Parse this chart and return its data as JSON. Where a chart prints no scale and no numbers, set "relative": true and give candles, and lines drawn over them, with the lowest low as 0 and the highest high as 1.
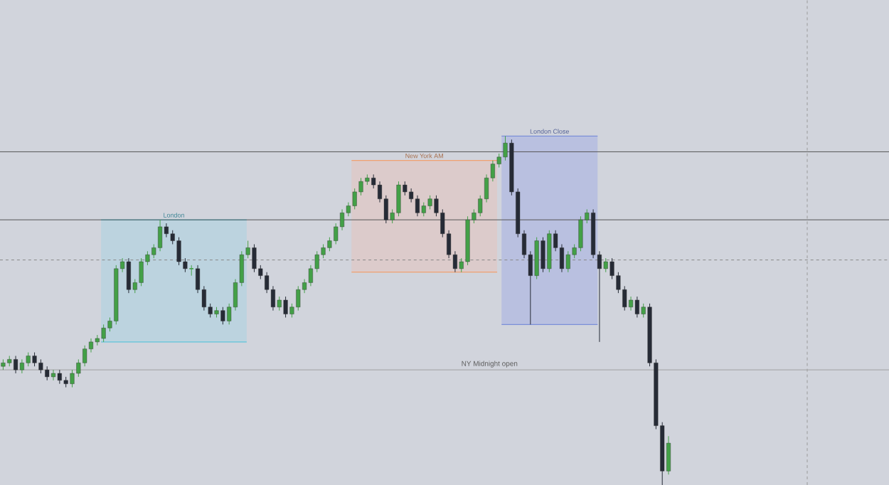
{
  "chart_data": {
    "type": "candlestick",
    "relative": true,
    "categories": [
      null,
      null,
      null,
      null,
      null,
      null,
      null,
      null,
      null,
      null,
      null,
      null,
      null,
      null,
      null,
      null,
      null,
      null,
      null,
      null,
      null,
      null,
      null,
      null,
      null,
      null,
      null,
      null,
      null,
      null,
      null,
      null,
      null,
      null,
      null,
      null,
      null,
      null,
      null,
      null,
      null,
      null,
      null,
      null,
      null,
      null,
      null,
      null,
      null,
      null,
      null,
      null,
      null,
      null,
      null,
      null,
      null,
      null,
      null,
      null,
      null,
      null,
      null,
      null,
      null,
      null,
      null,
      null,
      null,
      null,
      null,
      null,
      null,
      null,
      null,
      null,
      null,
      null,
      null,
      null,
      null,
      null,
      null,
      null,
      null,
      null,
      null,
      null,
      null,
      null,
      null,
      null,
      null,
      null,
      null,
      null,
      null,
      null,
      null,
      null,
      null,
      null,
      null,
      null,
      null,
      null,
      null
    ],
    "colors": [
      "#43a047",
      "#43a047",
      "#262b36",
      "#43a047",
      "#43a047",
      "#262b36",
      "#262b36",
      "#262b36",
      "#43a047",
      "#262b36",
      "#262b36",
      "#43a047",
      "#43a047",
      "#43a047",
      "#43a047",
      "#43a047",
      "#43a047",
      "#43a047",
      "#43a047",
      "#43a047",
      "#262b36",
      "#43a047",
      "#43a047",
      "#43a047",
      "#43a047",
      "#43a047",
      "#262b36",
      "#262b36",
      "#262b36",
      "#262b36",
      "#43a047",
      "#262b36",
      "#262b36",
      "#262b36",
      "#43a047",
      "#262b36",
      "#43a047",
      "#43a047",
      "#43a047",
      "#43a047",
      "#262b36",
      "#262b36",
      "#262b36",
      "#262b36",
      "#43a047",
      "#262b36",
      "#43a047",
      "#43a047",
      "#43a047",
      "#43a047",
      "#43a047",
      "#43a047",
      "#43a047",
      "#43a047",
      "#43a047",
      "#43a047",
      "#43a047",
      "#43a047",
      "#43a047",
      "#262b36",
      "#262b36",
      "#262b36",
      "#43a047",
      "#43a047",
      "#262b36",
      "#262b36",
      "#262b36",
      "#43a047",
      "#43a047",
      "#262b36",
      "#262b36",
      "#262b36",
      "#262b36",
      "#43a047",
      "#43a047",
      "#43a047",
      "#43a047",
      "#43a047",
      "#43a047",
      "#43a047",
      "#43a047",
      "#262b36",
      "#262b36",
      "#262b36",
      "#262b36",
      "#43a047",
      "#262b36",
      "#43a047",
      "#262b36",
      "#262b36",
      "#43a047",
      "#43a047",
      "#43a047",
      "#43a047",
      "#262b36",
      "#262b36",
      "#43a047",
      "#262b36",
      "#262b36",
      "#262b36",
      "#43a047",
      "#262b36",
      "#43a047",
      "#262b36",
      "#262b36",
      "#262b36",
      "#43a047"
    ],
    "ohlc": [
      [
        0.34,
        0.36,
        0.33,
        0.35
      ],
      [
        0.35,
        0.37,
        0.34,
        0.36
      ],
      [
        0.36,
        0.37,
        0.32,
        0.33
      ],
      [
        0.33,
        0.36,
        0.32,
        0.35
      ],
      [
        0.35,
        0.38,
        0.34,
        0.37
      ],
      [
        0.37,
        0.38,
        0.34,
        0.35
      ],
      [
        0.35,
        0.36,
        0.32,
        0.33
      ],
      [
        0.33,
        0.34,
        0.3,
        0.31
      ],
      [
        0.31,
        0.33,
        0.3,
        0.32
      ],
      [
        0.32,
        0.33,
        0.29,
        0.3
      ],
      [
        0.3,
        0.31,
        0.28,
        0.29
      ],
      [
        0.29,
        0.33,
        0.28,
        0.32
      ],
      [
        0.32,
        0.36,
        0.31,
        0.35
      ],
      [
        0.35,
        0.4,
        0.34,
        0.39
      ],
      [
        0.39,
        0.42,
        0.38,
        0.41
      ],
      [
        0.41,
        0.43,
        0.4,
        0.42
      ],
      [
        0.42,
        0.46,
        0.41,
        0.45
      ],
      [
        0.45,
        0.48,
        0.44,
        0.47
      ],
      [
        0.47,
        0.63,
        0.46,
        0.62
      ],
      [
        0.62,
        0.65,
        0.61,
        0.64
      ],
      [
        0.64,
        0.65,
        0.55,
        0.56
      ],
      [
        0.56,
        0.59,
        0.55,
        0.58
      ],
      [
        0.58,
        0.65,
        0.57,
        0.64
      ],
      [
        0.64,
        0.67,
        0.63,
        0.66
      ],
      [
        0.66,
        0.69,
        0.65,
        0.68
      ],
      [
        0.68,
        0.76,
        0.67,
        0.74
      ],
      [
        0.74,
        0.75,
        0.71,
        0.72
      ],
      [
        0.72,
        0.73,
        0.69,
        0.7
      ],
      [
        0.7,
        0.71,
        0.63,
        0.64
      ],
      [
        0.64,
        0.65,
        0.61,
        0.62
      ],
      [
        0.62,
        0.63,
        0.6,
        0.62
      ],
      [
        0.62,
        0.63,
        0.55,
        0.56
      ],
      [
        0.56,
        0.57,
        0.5,
        0.51
      ],
      [
        0.51,
        0.52,
        0.48,
        0.49
      ],
      [
        0.49,
        0.51,
        0.48,
        0.5
      ],
      [
        0.5,
        0.51,
        0.46,
        0.47
      ],
      [
        0.47,
        0.52,
        0.46,
        0.51
      ],
      [
        0.51,
        0.59,
        0.5,
        0.58
      ],
      [
        0.58,
        0.67,
        0.57,
        0.66
      ],
      [
        0.66,
        0.7,
        0.65,
        0.68
      ],
      [
        0.68,
        0.69,
        0.61,
        0.62
      ],
      [
        0.62,
        0.63,
        0.59,
        0.6
      ],
      [
        0.6,
        0.61,
        0.55,
        0.56
      ],
      [
        0.56,
        0.57,
        0.5,
        0.51
      ],
      [
        0.51,
        0.54,
        0.5,
        0.53
      ],
      [
        0.53,
        0.54,
        0.48,
        0.49
      ],
      [
        0.49,
        0.52,
        0.48,
        0.51
      ],
      [
        0.51,
        0.57,
        0.5,
        0.56
      ],
      [
        0.56,
        0.59,
        0.55,
        0.58
      ],
      [
        0.58,
        0.63,
        0.57,
        0.62
      ],
      [
        0.62,
        0.67,
        0.61,
        0.66
      ],
      [
        0.66,
        0.69,
        0.65,
        0.68
      ],
      [
        0.68,
        0.71,
        0.67,
        0.7
      ],
      [
        0.7,
        0.75,
        0.69,
        0.74
      ],
      [
        0.74,
        0.79,
        0.73,
        0.78
      ],
      [
        0.78,
        0.81,
        0.77,
        0.8
      ],
      [
        0.8,
        0.85,
        0.79,
        0.84
      ],
      [
        0.84,
        0.88,
        0.83,
        0.87
      ],
      [
        0.87,
        0.89,
        0.86,
        0.88
      ],
      [
        0.88,
        0.89,
        0.85,
        0.86
      ],
      [
        0.86,
        0.87,
        0.81,
        0.82
      ],
      [
        0.82,
        0.83,
        0.75,
        0.76
      ],
      [
        0.76,
        0.79,
        0.75,
        0.78
      ],
      [
        0.78,
        0.87,
        0.77,
        0.86
      ],
      [
        0.86,
        0.87,
        0.83,
        0.84
      ],
      [
        0.84,
        0.85,
        0.81,
        0.82
      ],
      [
        0.82,
        0.83,
        0.77,
        0.78
      ],
      [
        0.78,
        0.81,
        0.77,
        0.8
      ],
      [
        0.8,
        0.83,
        0.79,
        0.82
      ],
      [
        0.82,
        0.83,
        0.77,
        0.78
      ],
      [
        0.78,
        0.79,
        0.71,
        0.72
      ],
      [
        0.72,
        0.73,
        0.65,
        0.66
      ],
      [
        0.66,
        0.67,
        0.61,
        0.62
      ],
      [
        0.62,
        0.65,
        0.61,
        0.64
      ],
      [
        0.64,
        0.77,
        0.63,
        0.76
      ],
      [
        0.76,
        0.79,
        0.75,
        0.78
      ],
      [
        0.78,
        0.83,
        0.77,
        0.82
      ],
      [
        0.82,
        0.89,
        0.81,
        0.88
      ],
      [
        0.88,
        0.93,
        0.87,
        0.92
      ],
      [
        0.92,
        0.95,
        0.91,
        0.94
      ],
      [
        0.94,
        1.0,
        0.93,
        0.98
      ],
      [
        0.98,
        0.99,
        0.83,
        0.84
      ],
      [
        0.84,
        0.85,
        0.71,
        0.72
      ],
      [
        0.72,
        0.73,
        0.65,
        0.66
      ],
      [
        0.66,
        0.67,
        0.46,
        0.6
      ],
      [
        0.6,
        0.71,
        0.59,
        0.7
      ],
      [
        0.7,
        0.71,
        0.61,
        0.62
      ],
      [
        0.62,
        0.73,
        0.61,
        0.72
      ],
      [
        0.72,
        0.73,
        0.67,
        0.68
      ],
      [
        0.68,
        0.69,
        0.61,
        0.62
      ],
      [
        0.62,
        0.67,
        0.61,
        0.66
      ],
      [
        0.66,
        0.69,
        0.65,
        0.68
      ],
      [
        0.68,
        0.77,
        0.67,
        0.76
      ],
      [
        0.76,
        0.79,
        0.75,
        0.78
      ],
      [
        0.78,
        0.79,
        0.65,
        0.66
      ],
      [
        0.66,
        0.67,
        0.41,
        0.62
      ],
      [
        0.62,
        0.65,
        0.61,
        0.64
      ],
      [
        0.64,
        0.65,
        0.59,
        0.6
      ],
      [
        0.6,
        0.61,
        0.55,
        0.56
      ],
      [
        0.56,
        0.57,
        0.5,
        0.51
      ],
      [
        0.51,
        0.54,
        0.5,
        0.53
      ],
      [
        0.53,
        0.54,
        0.48,
        0.49
      ],
      [
        0.49,
        0.52,
        0.48,
        0.51
      ],
      [
        0.51,
        0.52,
        0.34,
        0.35
      ],
      [
        0.35,
        0.36,
        0.16,
        0.17
      ],
      [
        0.17,
        0.18,
        0.0,
        0.04
      ],
      [
        0.04,
        0.14,
        0.03,
        0.12
      ]
    ],
    "annotations": [
      "London",
      "New York AM",
      "London Close"
    ],
    "ref_lines": [
      {
        "axis": "y",
        "value": 0.955,
        "color": "#555555",
        "line_style": "solid"
      },
      {
        "axis": "y",
        "value": 0.76,
        "color": "#555555",
        "line_style": "solid"
      },
      {
        "axis": "y",
        "value": 0.645,
        "color": "#8a8a8a",
        "line_style": "dashed"
      },
      {
        "axis": "y",
        "value": 0.33,
        "color": "#a0a0a0",
        "line_style": "solid",
        "label": "NY Midnight open"
      }
    ]
  }
}
